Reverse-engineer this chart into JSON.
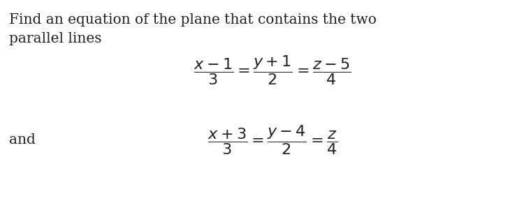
{
  "background_color": "#ffffff",
  "fig_width": 7.27,
  "fig_height": 3.01,
  "dpi": 100,
  "text_color": "#231f20",
  "intro_line1": "Find an equation of the plane that contains the two",
  "intro_line2": "parallel lines",
  "and_label": "and",
  "eq1": "\\dfrac{x-1}{3} = \\dfrac{y+1}{2} = \\dfrac{z-5}{4}",
  "eq2": "\\dfrac{x+3}{3} = \\dfrac{y-4}{2} = \\dfrac{z}{4}",
  "font_size_text": 14.5,
  "font_size_eq": 16
}
